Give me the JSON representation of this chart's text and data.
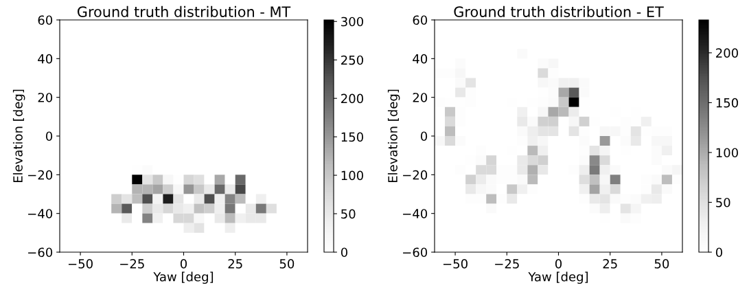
{
  "chart_data": [
    {
      "type": "heatmap",
      "title": "Ground truth distribution - MT",
      "xlabel": "Yaw [deg]",
      "ylabel": "Elevation [deg]",
      "x": [
        -32.5,
        -27.5,
        -22.5,
        -17.5,
        -12.5,
        -7.5,
        -2.5,
        2.5,
        7.5,
        12.5,
        17.5,
        22.5,
        27.5,
        32.5,
        37.5,
        42.5
      ],
      "y": [
        -17.5,
        -22.5,
        -27.5,
        -32.5,
        -37.5,
        -42.5,
        -47.5
      ],
      "cells": [
        [
          0,
          0,
          3,
          10,
          0,
          0,
          0,
          0,
          0,
          0,
          0,
          0,
          0,
          0,
          0,
          0
        ],
        [
          0,
          0,
          302,
          57,
          99,
          20,
          3,
          80,
          65,
          0,
          134,
          0,
          200,
          0,
          0,
          0
        ],
        [
          0,
          0,
          122,
          122,
          137,
          90,
          20,
          152,
          99,
          50,
          200,
          48,
          234,
          0,
          0,
          0
        ],
        [
          90,
          57,
          112,
          228,
          30,
          272,
          57,
          0,
          48,
          228,
          38,
          170,
          115,
          0,
          40,
          0
        ],
        [
          122,
          218,
          0,
          90,
          50,
          78,
          50,
          38,
          108,
          90,
          40,
          185,
          0,
          50,
          182,
          65
        ],
        [
          0,
          48,
          0,
          172,
          38,
          0,
          78,
          78,
          20,
          0,
          50,
          115,
          38,
          50,
          50,
          0
        ],
        [
          0,
          0,
          0,
          0,
          0,
          0,
          0,
          42,
          60,
          0,
          0,
          42,
          0,
          0,
          0,
          0
        ]
      ],
      "xlim": [
        -60,
        60
      ],
      "ylim": [
        -60,
        60
      ],
      "xticks": [
        -50,
        -25,
        0,
        25,
        50
      ],
      "yticks": [
        -60,
        -40,
        -20,
        0,
        20,
        40,
        60
      ],
      "clim": [
        0,
        302
      ],
      "cticks": [
        0,
        50,
        100,
        150,
        200,
        250,
        300
      ]
    },
    {
      "type": "heatmap",
      "title": "Ground truth distribution - ET",
      "xlabel": "Yaw [deg]",
      "ylabel": "Elevation [deg]",
      "x": [
        -57.5,
        -52.5,
        -47.5,
        -42.5,
        -37.5,
        -32.5,
        -27.5,
        -22.5,
        -17.5,
        -12.5,
        -7.5,
        -2.5,
        2.5,
        7.5,
        12.5,
        17.5,
        22.5,
        27.5,
        32.5,
        37.5,
        42.5,
        47.5,
        52.5,
        57.5
      ],
      "y": [
        42.5,
        37.5,
        32.5,
        27.5,
        22.5,
        17.5,
        12.5,
        7.5,
        2.5,
        -2.5,
        -7.5,
        -12.5,
        -17.5,
        -22.5,
        -27.5,
        -32.5,
        -37.5,
        -42.5
      ],
      "cells": [
        [
          0,
          0,
          0,
          0,
          0,
          0,
          0,
          0,
          10,
          0,
          0,
          0,
          0,
          0,
          0,
          0,
          0,
          0,
          0,
          0,
          0,
          0,
          0,
          0
        ],
        [
          0,
          0,
          8,
          0,
          0,
          0,
          0,
          0,
          0,
          0,
          8,
          15,
          0,
          0,
          0,
          0,
          0,
          0,
          0,
          0,
          0,
          0,
          0,
          0
        ],
        [
          5,
          5,
          15,
          0,
          0,
          0,
          0,
          0,
          0,
          0,
          58,
          5,
          0,
          0,
          0,
          0,
          0,
          0,
          0,
          0,
          0,
          0,
          0,
          0
        ],
        [
          0,
          0,
          10,
          45,
          0,
          0,
          0,
          0,
          0,
          0,
          15,
          10,
          29,
          29,
          10,
          0,
          0,
          0,
          0,
          0,
          0,
          0,
          0,
          0
        ],
        [
          0,
          0,
          40,
          5,
          0,
          0,
          0,
          0,
          0,
          0,
          3,
          8,
          103,
          168,
          10,
          0,
          0,
          0,
          0,
          0,
          0,
          0,
          0,
          0
        ],
        [
          5,
          3,
          3,
          5,
          0,
          0,
          0,
          3,
          0,
          3,
          5,
          10,
          76,
          233,
          3,
          0,
          0,
          0,
          0,
          0,
          0,
          0,
          0,
          0
        ],
        [
          0,
          76,
          5,
          0,
          0,
          0,
          0,
          0,
          29,
          0,
          15,
          103,
          90,
          35,
          3,
          0,
          0,
          3,
          0,
          3,
          0,
          0,
          0,
          0
        ],
        [
          0,
          58,
          5,
          0,
          0,
          0,
          0,
          0,
          38,
          10,
          68,
          68,
          0,
          15,
          68,
          3,
          0,
          0,
          5,
          3,
          29,
          0,
          0,
          0
        ],
        [
          0,
          88,
          0,
          0,
          0,
          0,
          0,
          0,
          10,
          32,
          45,
          45,
          0,
          45,
          5,
          0,
          15,
          15,
          5,
          45,
          3,
          5,
          5,
          0
        ],
        [
          15,
          58,
          8,
          0,
          0,
          0,
          0,
          0,
          5,
          29,
          15,
          0,
          0,
          0,
          8,
          0,
          114,
          0,
          8,
          38,
          0,
          15,
          15,
          0
        ],
        [
          0,
          0,
          0,
          0,
          5,
          0,
          0,
          3,
          0,
          90,
          29,
          0,
          0,
          0,
          5,
          45,
          20,
          0,
          3,
          0,
          0,
          8,
          29,
          0
        ],
        [
          0,
          0,
          0,
          3,
          8,
          62,
          0,
          0,
          38,
          58,
          68,
          0,
          0,
          0,
          8,
          127,
          58,
          0,
          0,
          0,
          0,
          8,
          0,
          0
        ],
        [
          0,
          0,
          5,
          0,
          58,
          58,
          5,
          5,
          38,
          97,
          40,
          0,
          0,
          5,
          32,
          140,
          29,
          10,
          0,
          0,
          0,
          0,
          10,
          20
        ],
        [
          0,
          0,
          0,
          68,
          35,
          10,
          5,
          5,
          10,
          90,
          0,
          0,
          0,
          0,
          52,
          84,
          15,
          135,
          0,
          0,
          5,
          10,
          88,
          5
        ],
        [
          0,
          0,
          0,
          38,
          15,
          10,
          0,
          76,
          29,
          5,
          0,
          0,
          0,
          0,
          29,
          107,
          29,
          58,
          0,
          0,
          5,
          38,
          10,
          0
        ],
        [
          0,
          0,
          0,
          5,
          5,
          88,
          5,
          38,
          0,
          0,
          0,
          0,
          0,
          0,
          5,
          38,
          45,
          10,
          5,
          8,
          29,
          32,
          0,
          0
        ],
        [
          0,
          0,
          0,
          0,
          0,
          10,
          0,
          0,
          0,
          0,
          0,
          0,
          0,
          0,
          0,
          8,
          32,
          0,
          45,
          20,
          0,
          0,
          0,
          0
        ],
        [
          0,
          0,
          0,
          0,
          0,
          0,
          0,
          0,
          0,
          0,
          0,
          0,
          0,
          0,
          0,
          0,
          3,
          0,
          10,
          5,
          0,
          0,
          0,
          0
        ]
      ],
      "xlim": [
        -60,
        60
      ],
      "ylim": [
        -60,
        60
      ],
      "xticks": [
        -50,
        -25,
        0,
        25,
        50
      ],
      "yticks": [
        -60,
        -40,
        -20,
        0,
        20,
        40,
        60
      ],
      "clim": [
        0,
        233
      ],
      "cticks": [
        0,
        50,
        100,
        150,
        200
      ]
    }
  ]
}
